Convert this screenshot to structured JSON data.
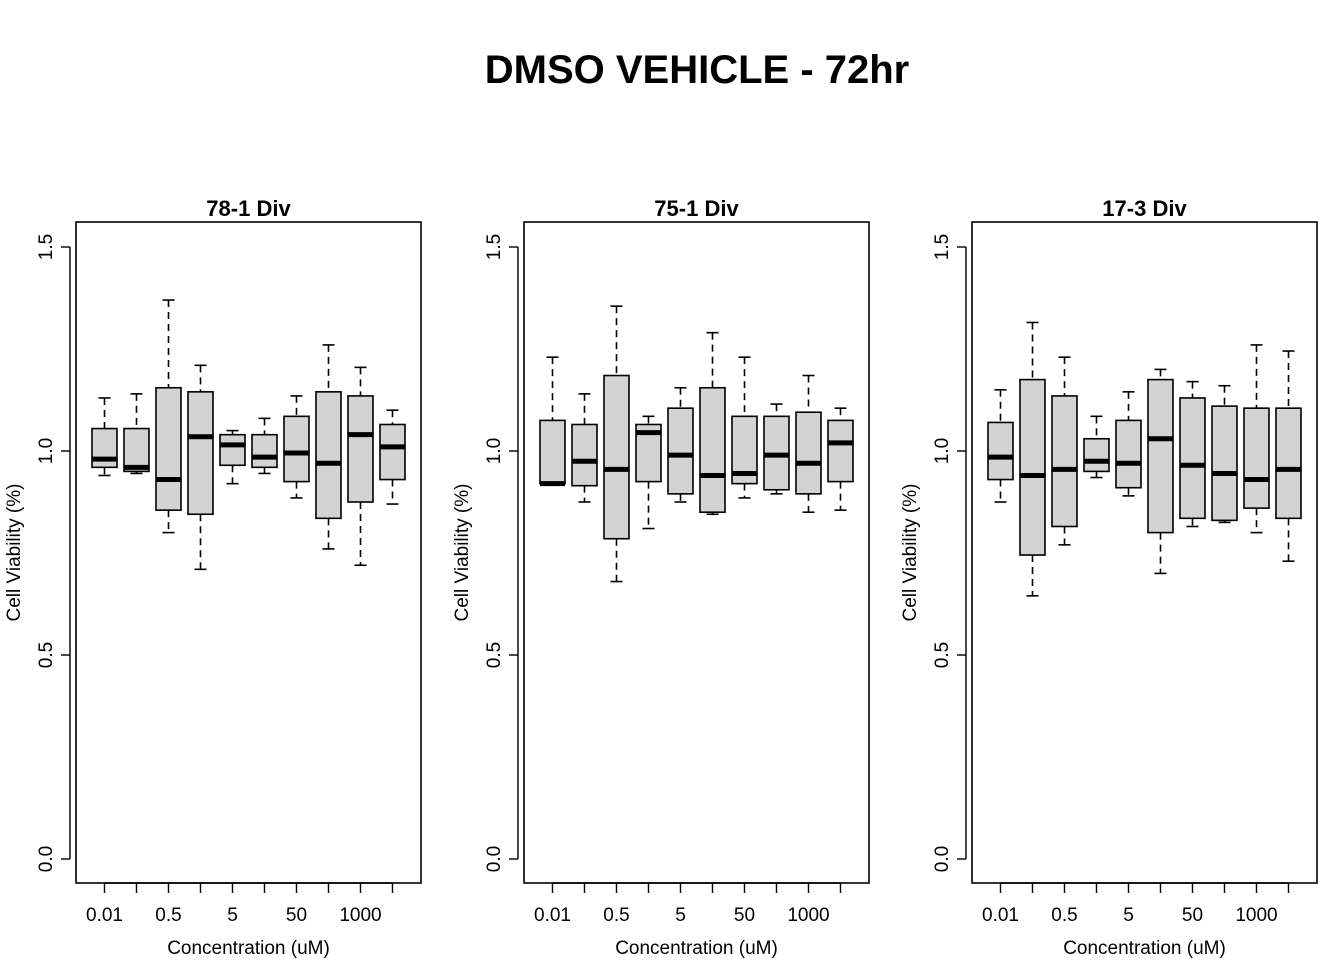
{
  "title": "DMSO VEHICLE - 72hr",
  "chart_data": [
    {
      "type": "box",
      "title": "78-1 Div",
      "xlabel": "Concentration (uM)",
      "ylabel": "Cell Viability (%)",
      "ylim": [
        0.0,
        1.5
      ],
      "yticks": [
        "0.0",
        "0.5",
        "1.0",
        "1.5"
      ],
      "xtick_labels": [
        "0.01",
        "",
        "0.5",
        "",
        "5",
        "",
        "50",
        "",
        "1000",
        ""
      ],
      "boxes": [
        {
          "min": 0.94,
          "q1": 0.96,
          "median": 0.98,
          "q3": 1.055,
          "max": 1.13
        },
        {
          "min": 0.945,
          "q1": 0.95,
          "median": 0.96,
          "q3": 1.055,
          "max": 1.14
        },
        {
          "min": 0.8,
          "q1": 0.855,
          "median": 0.93,
          "q3": 1.155,
          "max": 1.37
        },
        {
          "min": 0.71,
          "q1": 0.845,
          "median": 1.035,
          "q3": 1.145,
          "max": 1.21
        },
        {
          "min": 0.92,
          "q1": 0.965,
          "median": 1.015,
          "q3": 1.04,
          "max": 1.05
        },
        {
          "min": 0.945,
          "q1": 0.96,
          "median": 0.985,
          "q3": 1.04,
          "max": 1.08
        },
        {
          "min": 0.885,
          "q1": 0.925,
          "median": 0.995,
          "q3": 1.085,
          "max": 1.135
        },
        {
          "min": 0.76,
          "q1": 0.835,
          "median": 0.97,
          "q3": 1.145,
          "max": 1.26
        },
        {
          "min": 0.72,
          "q1": 0.875,
          "median": 1.04,
          "q3": 1.135,
          "max": 1.205
        },
        {
          "min": 0.87,
          "q1": 0.93,
          "median": 1.01,
          "q3": 1.065,
          "max": 1.1
        }
      ]
    },
    {
      "type": "box",
      "title": "75-1 Div",
      "xlabel": "Concentration (uM)",
      "ylabel": "Cell Viability (%)",
      "ylim": [
        0.0,
        1.5
      ],
      "yticks": [
        "0.0",
        "0.5",
        "1.0",
        "1.5"
      ],
      "xtick_labels": [
        "0.01",
        "",
        "0.5",
        "",
        "5",
        "",
        "50",
        "",
        "1000",
        ""
      ],
      "boxes": [
        {
          "min": 0.92,
          "q1": 0.92,
          "median": 0.92,
          "q3": 1.075,
          "max": 1.23
        },
        {
          "min": 0.875,
          "q1": 0.915,
          "median": 0.975,
          "q3": 1.065,
          "max": 1.14
        },
        {
          "min": 0.68,
          "q1": 0.785,
          "median": 0.955,
          "q3": 1.185,
          "max": 1.355
        },
        {
          "min": 0.81,
          "q1": 0.925,
          "median": 1.045,
          "q3": 1.065,
          "max": 1.085
        },
        {
          "min": 0.875,
          "q1": 0.895,
          "median": 0.99,
          "q3": 1.105,
          "max": 1.155
        },
        {
          "min": 0.845,
          "q1": 0.85,
          "median": 0.94,
          "q3": 1.155,
          "max": 1.29
        },
        {
          "min": 0.885,
          "q1": 0.92,
          "median": 0.945,
          "q3": 1.085,
          "max": 1.23
        },
        {
          "min": 0.895,
          "q1": 0.905,
          "median": 0.99,
          "q3": 1.085,
          "max": 1.115
        },
        {
          "min": 0.85,
          "q1": 0.895,
          "median": 0.97,
          "q3": 1.095,
          "max": 1.185
        },
        {
          "min": 0.855,
          "q1": 0.925,
          "median": 1.02,
          "q3": 1.075,
          "max": 1.105
        }
      ]
    },
    {
      "type": "box",
      "title": "17-3 Div",
      "xlabel": "Concentration (uM)",
      "ylabel": "Cell Viability (%)",
      "ylim": [
        0.0,
        1.5
      ],
      "yticks": [
        "0.0",
        "0.5",
        "1.0",
        "1.5"
      ],
      "xtick_labels": [
        "0.01",
        "",
        "0.5",
        "",
        "5",
        "",
        "50",
        "",
        "1000",
        ""
      ],
      "boxes": [
        {
          "min": 0.875,
          "q1": 0.93,
          "median": 0.985,
          "q3": 1.07,
          "max": 1.15
        },
        {
          "min": 0.645,
          "q1": 0.745,
          "median": 0.94,
          "q3": 1.175,
          "max": 1.315
        },
        {
          "min": 0.77,
          "q1": 0.815,
          "median": 0.955,
          "q3": 1.135,
          "max": 1.23
        },
        {
          "min": 0.935,
          "q1": 0.95,
          "median": 0.975,
          "q3": 1.03,
          "max": 1.085
        },
        {
          "min": 0.89,
          "q1": 0.91,
          "median": 0.97,
          "q3": 1.075,
          "max": 1.145
        },
        {
          "min": 0.7,
          "q1": 0.8,
          "median": 1.03,
          "q3": 1.175,
          "max": 1.2
        },
        {
          "min": 0.815,
          "q1": 0.835,
          "median": 0.965,
          "q3": 1.13,
          "max": 1.17
        },
        {
          "min": 0.825,
          "q1": 0.83,
          "median": 0.945,
          "q3": 1.11,
          "max": 1.16
        },
        {
          "min": 0.8,
          "q1": 0.86,
          "median": 0.93,
          "q3": 1.105,
          "max": 1.26
        },
        {
          "min": 0.73,
          "q1": 0.835,
          "median": 0.955,
          "q3": 1.105,
          "max": 1.245
        }
      ]
    }
  ]
}
